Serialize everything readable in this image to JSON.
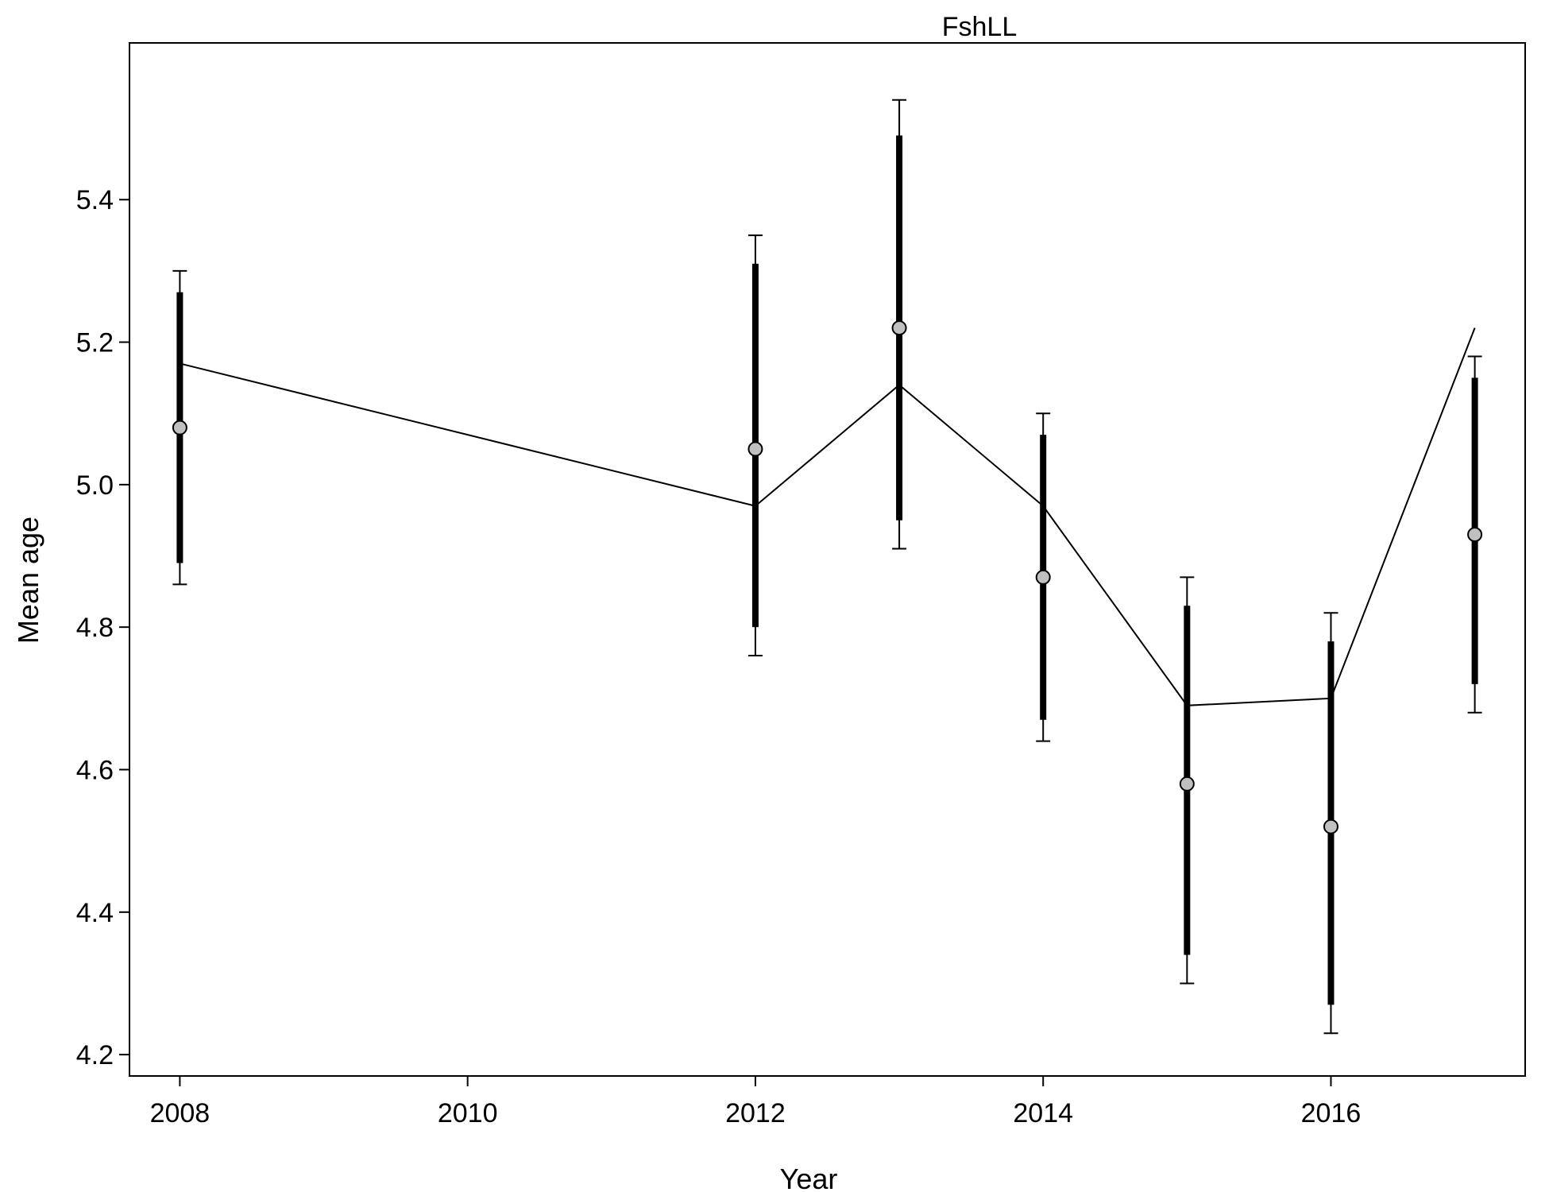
{
  "chart_data": {
    "type": "line",
    "title": "FshLL",
    "xlabel": "Year",
    "ylabel": "Mean age",
    "xlim": [
      2007.65,
      2017.35
    ],
    "ylim": [
      4.17,
      5.62
    ],
    "x_ticks": [
      "2008",
      "2010",
      "2012",
      "2014",
      "2016"
    ],
    "y_ticks": [
      "4.2",
      "4.4",
      "4.6",
      "4.8",
      "5.0",
      "5.2",
      "5.4"
    ],
    "grid": false,
    "observed": {
      "x": [
        2008,
        2012,
        2013,
        2014,
        2015,
        2016,
        2017
      ],
      "y": [
        5.08,
        5.05,
        5.22,
        4.87,
        4.58,
        4.52,
        4.93
      ],
      "inner_interval": [
        [
          4.89,
          5.27
        ],
        [
          4.8,
          5.31
        ],
        [
          4.95,
          5.49
        ],
        [
          4.67,
          5.07
        ],
        [
          4.34,
          4.83
        ],
        [
          4.27,
          4.78
        ],
        [
          4.72,
          5.15
        ]
      ],
      "outer_interval": [
        [
          4.86,
          5.3
        ],
        [
          4.76,
          5.35
        ],
        [
          4.91,
          5.54
        ],
        [
          4.64,
          5.1
        ],
        [
          4.3,
          4.87
        ],
        [
          4.23,
          4.82
        ],
        [
          4.68,
          5.18
        ]
      ]
    },
    "expected": {
      "x": [
        2008,
        2012,
        2013,
        2014,
        2015,
        2016,
        2017
      ],
      "y": [
        5.17,
        4.97,
        5.14,
        4.97,
        4.69,
        4.7,
        5.22
      ]
    },
    "colors": {
      "line": "#000000",
      "point_fill": "#c0c0c0",
      "point_stroke": "#000000",
      "frame": "#000000"
    }
  }
}
